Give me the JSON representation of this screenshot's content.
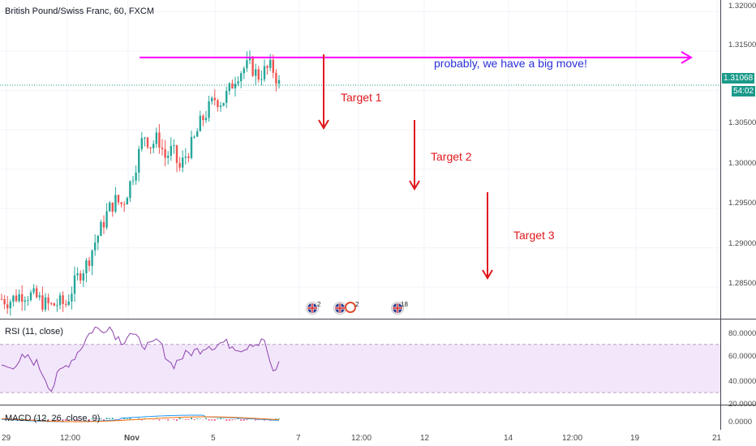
{
  "header": {
    "title": "British Pound/Swiss Franc, 60, FXCM"
  },
  "price_axis": {
    "ticks": [
      "1.32000",
      "1.31500",
      "1.31068",
      "1.30500",
      "1.30000",
      "1.29500",
      "1.29000",
      "1.28500"
    ],
    "last_price": "1.31068",
    "countdown": "54:02"
  },
  "rsi": {
    "title": "RSI (11, close)",
    "ticks": [
      "80.0000",
      "60.0000",
      "40.0000",
      "20.0000"
    ]
  },
  "macd": {
    "title": "MACD (12, 26, close, 9)",
    "ticks": [
      "0.0000"
    ]
  },
  "time_axis": {
    "labels": [
      "29",
      "12:00",
      "Nov",
      "5",
      "7",
      "12:00",
      "12",
      "14",
      "12:00",
      "19",
      "21"
    ]
  },
  "annotations": {
    "target1": "Target 1",
    "target2": "Target 2",
    "target3": "Target 3",
    "note": "probably, we have a big move!"
  },
  "events": [
    {
      "icon": "uk-flag-icon",
      "count": "2"
    },
    {
      "icon": "uk-flag-icon",
      "count": ""
    },
    {
      "icon": "swiss-event-icon",
      "count": "2"
    },
    {
      "icon": "uk-flag-icon",
      "count": "18"
    }
  ],
  "colors": {
    "up": "#26a69a",
    "down": "#ef5350",
    "resistance_line": "#ff00ff",
    "target_arrow": "#e0181f",
    "note_text": "#2a2fd8",
    "rsi_line": "#8e44ad",
    "rsi_band": "#f2e6fb",
    "price_badge": "#1a9a8a"
  },
  "chart_data": {
    "type": "candlestick",
    "title": "British Pound/Swiss Franc, 60, FXCM",
    "y_range": [
      1.281,
      1.3215
    ],
    "last_close": 1.31068,
    "resistance_level": 1.3142,
    "x_labels": [
      "29",
      "12:00",
      "Nov",
      "5",
      "7",
      "12:00",
      "12",
      "14",
      "12:00",
      "19",
      "21"
    ],
    "close_path": [
      1.2835,
      1.2832,
      1.2838,
      1.2842,
      1.284,
      1.2836,
      1.2829,
      1.2826,
      1.283,
      1.2828,
      1.285,
      1.2868,
      1.288,
      1.2905,
      1.2925,
      1.2948,
      1.296,
      1.2955,
      1.298,
      1.301,
      1.3045,
      1.303,
      1.304,
      1.3015,
      1.3025,
      1.3,
      1.302,
      1.3035,
      1.306,
      1.3075,
      1.309,
      1.3085,
      1.31,
      1.312,
      1.3128,
      1.3132,
      1.3118,
      1.3125,
      1.313,
      1.3108
    ],
    "rsi_values": [
      52,
      55,
      48,
      60,
      58,
      54,
      44,
      32,
      46,
      52,
      58,
      66,
      76,
      84,
      81,
      86,
      78,
      72,
      80,
      74,
      70,
      68,
      74,
      62,
      52,
      58,
      62,
      64,
      66,
      70,
      68,
      72,
      70,
      68,
      66,
      72,
      70,
      74,
      45,
      54
    ],
    "rsi_band": [
      30,
      70
    ],
    "rsi_ylim": [
      20,
      90
    ]
  }
}
